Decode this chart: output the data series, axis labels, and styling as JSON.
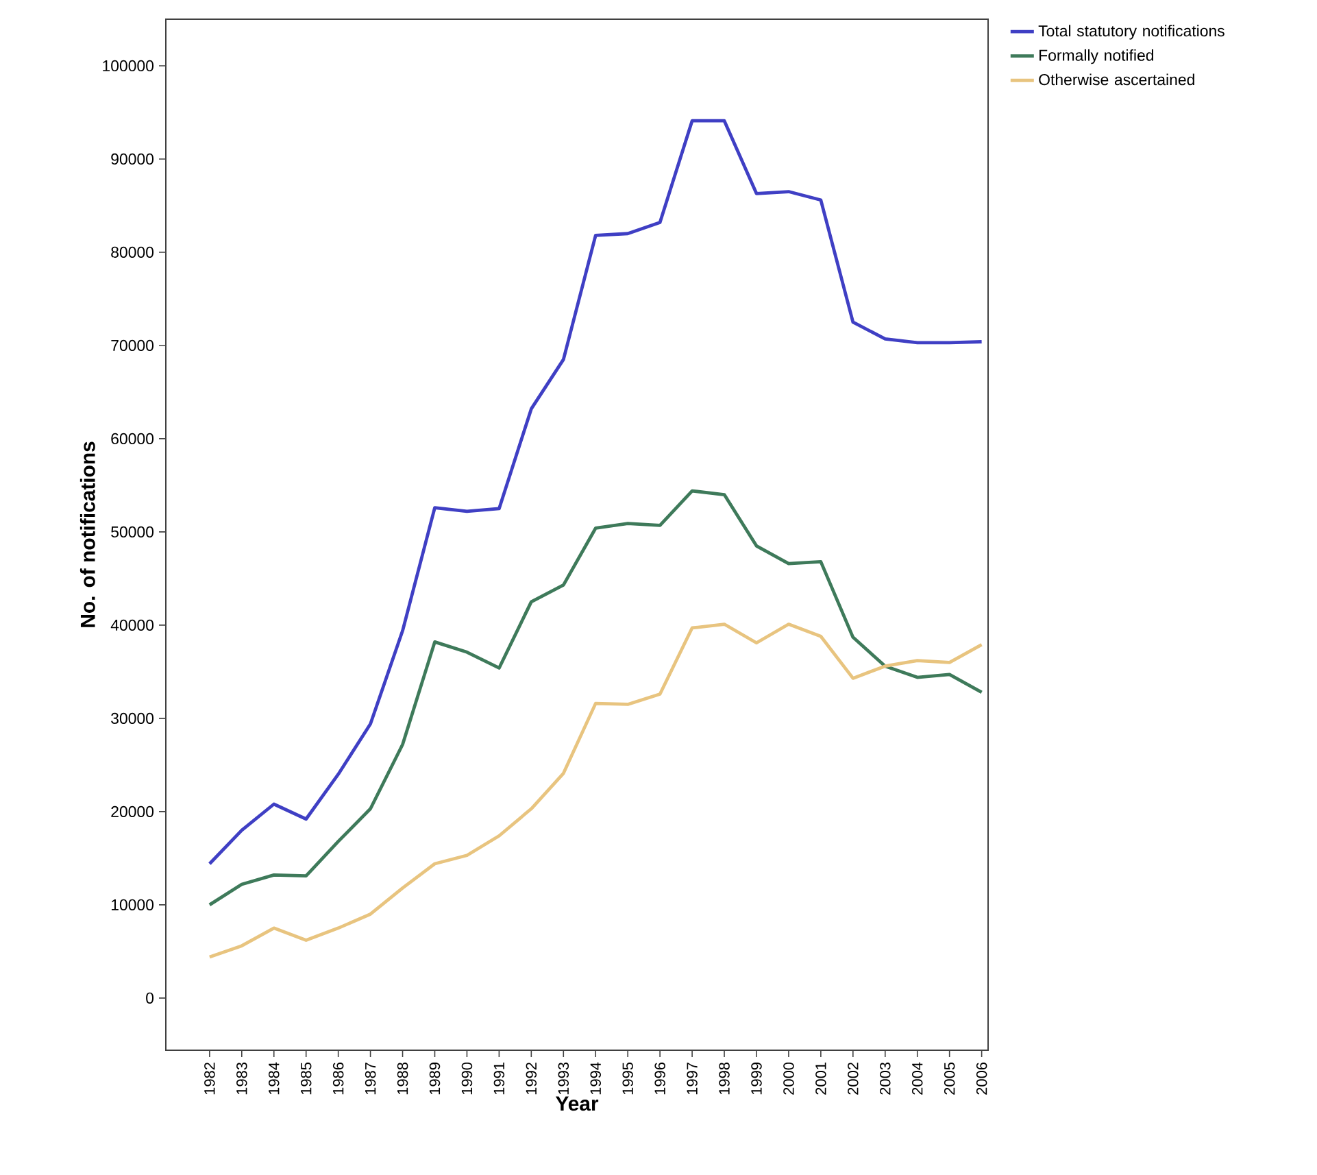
{
  "chart_data": {
    "type": "line",
    "xlabel": "Year",
    "ylabel": "No. of notifications",
    "categories": [
      "1982",
      "1983",
      "1984",
      "1985",
      "1986",
      "1987",
      "1988",
      "1989",
      "1990",
      "1991",
      "1992",
      "1993",
      "1994",
      "1995",
      "1996",
      "1997",
      "1998",
      "1999",
      "2000",
      "2001",
      "2002",
      "2003",
      "2004",
      "2005",
      "2006"
    ],
    "series": [
      {
        "name": "Total statutory notifications",
        "color": "#3f3fc4",
        "values": [
          14400,
          18000,
          20800,
          19200,
          24000,
          29400,
          39400,
          52600,
          52200,
          52500,
          63200,
          68500,
          81800,
          82000,
          83200,
          94100,
          94100,
          86300,
          86500,
          85600,
          72500,
          70700,
          70300,
          70300,
          70400
        ]
      },
      {
        "name": "Formally notified",
        "color": "#3e7a5a",
        "values": [
          10000,
          12200,
          13200,
          13100,
          16800,
          20300,
          27200,
          38200,
          37100,
          35400,
          42500,
          44300,
          50400,
          50900,
          50700,
          54400,
          54000,
          48500,
          46600,
          46800,
          38700,
          35600,
          34400,
          34700,
          32800
        ]
      },
      {
        "name": "Otherwise ascertained",
        "color": "#e8c47f",
        "values": [
          4400,
          5600,
          7500,
          6200,
          7500,
          9000,
          11800,
          14400,
          15300,
          17400,
          20300,
          24100,
          31600,
          31500,
          32600,
          39700,
          40100,
          38100,
          40100,
          38800,
          34300,
          35600,
          36200,
          36000,
          37900
        ]
      }
    ],
    "ylim": [
      -5600,
      105000
    ],
    "yticks": [
      0,
      10000,
      20000,
      30000,
      40000,
      50000,
      60000,
      70000,
      80000,
      90000,
      100000
    ],
    "grid": false,
    "legend": "right",
    "marker": "none",
    "line_style": "solid"
  }
}
